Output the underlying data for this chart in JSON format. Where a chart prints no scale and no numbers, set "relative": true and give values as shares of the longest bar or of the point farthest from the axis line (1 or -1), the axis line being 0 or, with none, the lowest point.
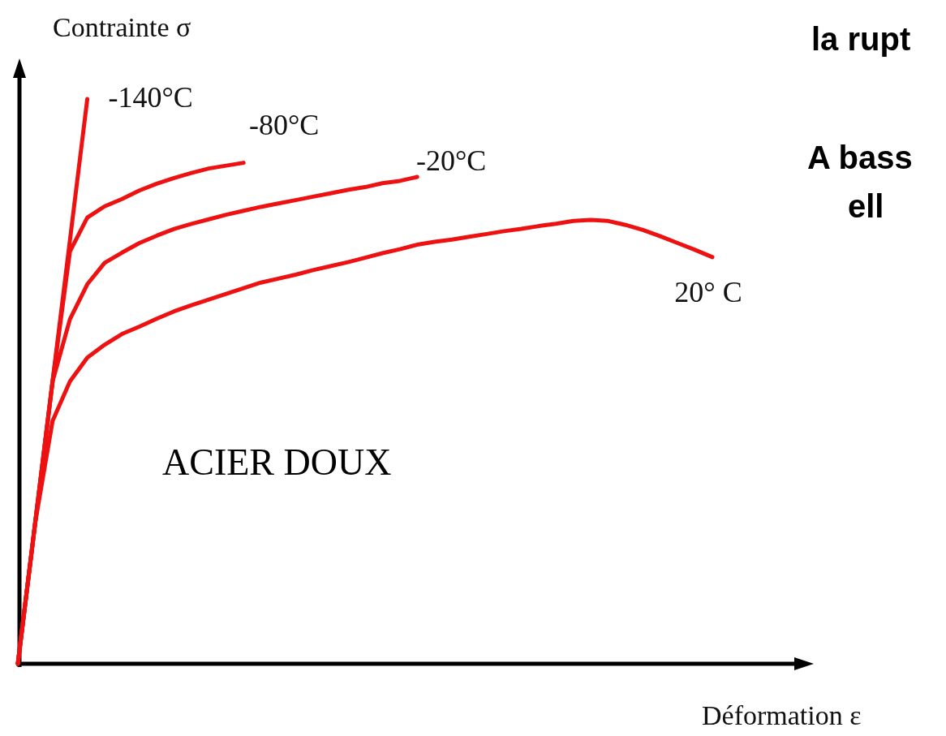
{
  "chart_data": {
    "type": "line",
    "relative": true,
    "xlabel": "Déformation ε",
    "ylabel": "Contrainte σ",
    "line_style": "solid",
    "marker": "none",
    "legend": false,
    "annotations": [
      "ACIER DOUX",
      "la rupt",
      "A bass",
      "ell"
    ],
    "categories": [
      null,
      null,
      null,
      null,
      null,
      null,
      null,
      null,
      null,
      null,
      null,
      null,
      null,
      null,
      null,
      null,
      null,
      null,
      null,
      null,
      null,
      null,
      null,
      null,
      null,
      null,
      null,
      null,
      null,
      null,
      null,
      null,
      null,
      null,
      null,
      null,
      null,
      null,
      null,
      null,
      null
    ],
    "series": [
      {
        "name": "-140°C",
        "color": "#ee1111",
        "values": [
          0,
          0.25,
          0.5,
          0.75,
          1.0,
          null,
          null,
          null,
          null,
          null,
          null,
          null,
          null,
          null,
          null,
          null,
          null,
          null,
          null,
          null,
          null,
          null,
          null,
          null,
          null,
          null,
          null,
          null,
          null,
          null,
          null,
          null,
          null,
          null,
          null,
          null,
          null,
          null,
          null,
          null,
          null
        ]
      },
      {
        "name": "-80°C",
        "color": "#ee1111",
        "values": [
          0,
          0.25,
          0.5,
          0.73,
          0.79,
          0.81,
          0.823,
          0.838,
          0.85,
          0.86,
          0.869,
          0.877,
          0.882,
          0.887,
          null,
          null,
          null,
          null,
          null,
          null,
          null,
          null,
          null,
          null,
          null,
          null,
          null,
          null,
          null,
          null,
          null,
          null,
          null,
          null,
          null,
          null,
          null,
          null,
          null,
          null,
          null
        ]
      },
      {
        "name": "-20°C",
        "color": "#ee1111",
        "values": [
          0,
          0.25,
          0.5,
          0.61,
          0.672,
          0.71,
          0.728,
          0.745,
          0.758,
          0.77,
          0.779,
          0.787,
          0.795,
          0.802,
          0.809,
          0.815,
          0.821,
          0.827,
          0.833,
          0.839,
          0.844,
          0.851,
          0.855,
          0.862,
          null,
          null,
          null,
          null,
          null,
          null,
          null,
          null,
          null,
          null,
          null,
          null,
          null,
          null,
          null,
          null,
          null
        ]
      },
      {
        "name": "20° C",
        "color": "#ee1111",
        "values": [
          0,
          0.25,
          0.43,
          0.5,
          0.542,
          0.565,
          0.584,
          0.597,
          0.611,
          0.624,
          0.635,
          0.645,
          0.655,
          0.665,
          0.675,
          0.682,
          0.689,
          0.697,
          0.704,
          0.711,
          0.719,
          0.727,
          0.734,
          0.742,
          0.747,
          0.751,
          0.756,
          0.761,
          0.766,
          0.77,
          0.775,
          0.779,
          0.784,
          0.786,
          0.784,
          0.777,
          0.768,
          0.757,
          0.745,
          0.733,
          0.72
        ]
      }
    ]
  }
}
